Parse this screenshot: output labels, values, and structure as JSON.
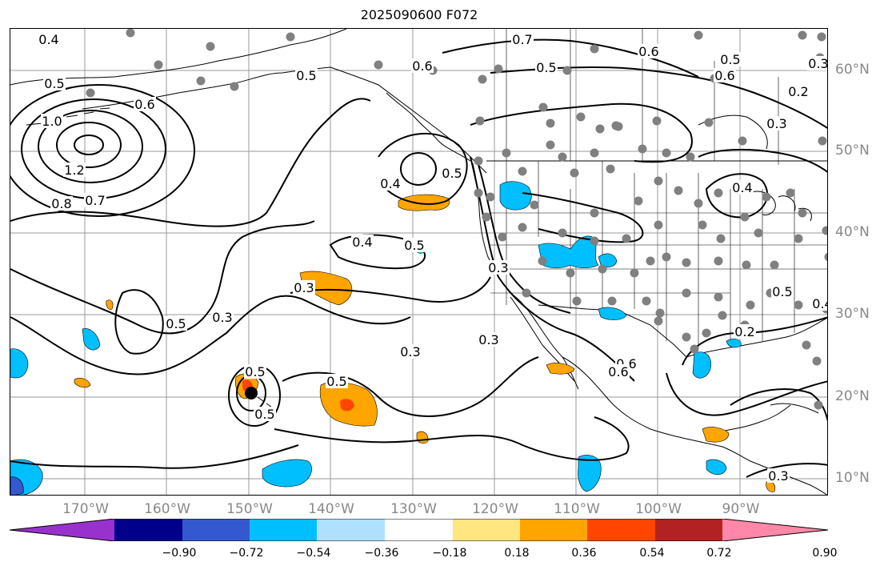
{
  "title": "2025090600 F072",
  "map": {
    "lon_ticks": [
      "170°W",
      "160°W",
      "150°W",
      "140°W",
      "130°W",
      "120°W",
      "110°W",
      "100°W",
      "90°W"
    ],
    "lat_ticks": [
      "60°N",
      "50°N",
      "40°N",
      "30°N",
      "20°N",
      "10°N"
    ],
    "contour_labels": [
      "0.4",
      "0.5",
      "0.6",
      "1.0",
      "1.2",
      "0.8",
      "0.7",
      "0.6",
      "0.7",
      "0.5",
      "0.5",
      "0.4",
      "0.5",
      "0.3",
      "0.5",
      "0.3",
      "0.5",
      "0.5",
      "0.5",
      "0.3",
      "0.3",
      "0.6",
      "0.4",
      "0.6",
      "0.5",
      "0.6",
      "0.2",
      "0.3",
      "0.3",
      "0.4",
      "0.2",
      "0.5",
      "0.4",
      "0.3",
      "0.6",
      "0.5",
      "0.3"
    ],
    "colors": {
      "land_outline": "#000000",
      "grid": "#9a9a9a",
      "station_dots": "#808080",
      "contours": "#000000"
    }
  },
  "colorbar": {
    "ticks": [
      "−0.90",
      "−0.72",
      "−0.54",
      "−0.36",
      "−0.18",
      "0.18",
      "0.36",
      "0.54",
      "0.72",
      "0.90"
    ],
    "colors": [
      "#9932cc",
      "#00008b",
      "#3458cf",
      "#00bfff",
      "#b0e0ff",
      "#ffffff",
      "#ffe680",
      "#ffa500",
      "#ff4500",
      "#b22222",
      "#ff88aa"
    ]
  }
}
